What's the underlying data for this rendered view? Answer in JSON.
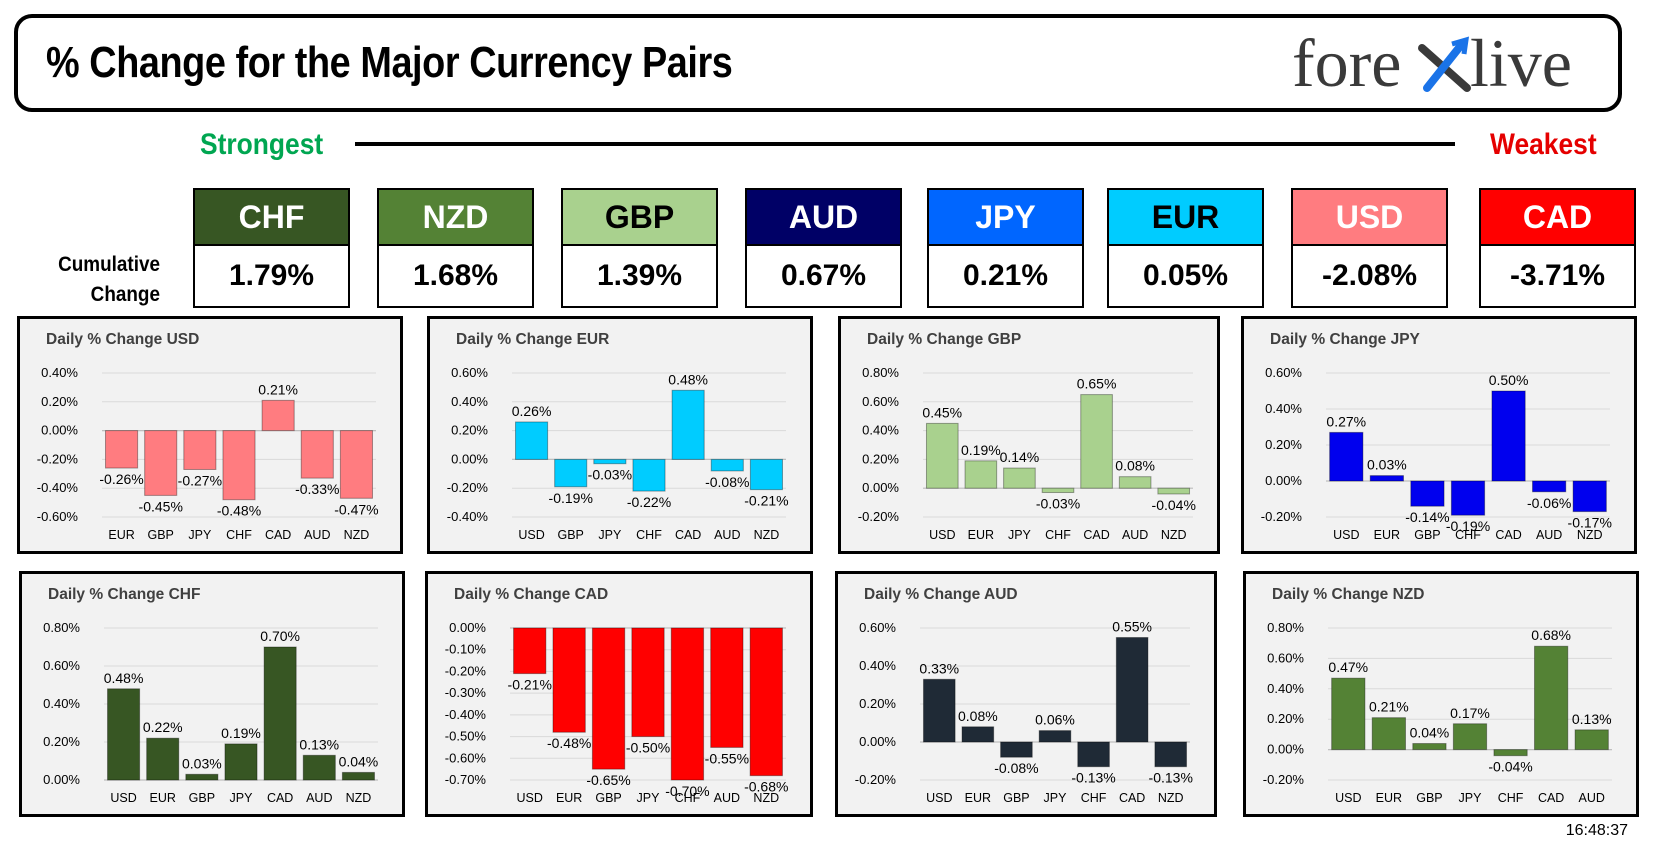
{
  "header": {
    "title": "% Change for the Major Currency Pairs",
    "logo_text": "forexlive"
  },
  "scale": {
    "strongest": "Strongest",
    "weakest": "Weakest"
  },
  "cumulative": {
    "label_line1": "Cumulative",
    "label_line2": "Change",
    "currencies": [
      {
        "code": "CHF",
        "value": "1.79%",
        "bg": "#375623",
        "fg": "#ffffff"
      },
      {
        "code": "NZD",
        "value": "1.68%",
        "bg": "#548235",
        "fg": "#ffffff"
      },
      {
        "code": "GBP",
        "value": "1.39%",
        "bg": "#a9d18e",
        "fg": "#000000"
      },
      {
        "code": "AUD",
        "value": "0.67%",
        "bg": "#000066",
        "fg": "#ffffff"
      },
      {
        "code": "JPY",
        "value": "0.21%",
        "bg": "#0066ff",
        "fg": "#ffffff"
      },
      {
        "code": "EUR",
        "value": "0.05%",
        "bg": "#00ccff",
        "fg": "#000000"
      },
      {
        "code": "USD",
        "value": "-2.08%",
        "bg": "#ff7c80",
        "fg": "#ffffff"
      },
      {
        "code": "CAD",
        "value": "-3.71%",
        "bg": "#ff0000",
        "fg": "#ffffff"
      }
    ]
  },
  "chart_data": [
    {
      "type": "bar",
      "title": "Daily % Change USD",
      "categories": [
        "EUR",
        "GBP",
        "JPY",
        "CHF",
        "CAD",
        "AUD",
        "NZD"
      ],
      "values": [
        -0.26,
        -0.45,
        -0.27,
        -0.48,
        0.21,
        -0.33,
        -0.47
      ],
      "ylim": [
        -0.6,
        0.4
      ],
      "ticks": [
        0.4,
        0.2,
        0,
        -0.2,
        -0.4,
        -0.6
      ],
      "decimals": 2,
      "color": "#ff7c80"
    },
    {
      "type": "bar",
      "title": "Daily % Change EUR",
      "categories": [
        "USD",
        "GBP",
        "JPY",
        "CHF",
        "CAD",
        "AUD",
        "NZD"
      ],
      "values": [
        0.26,
        -0.19,
        -0.03,
        -0.22,
        0.48,
        -0.08,
        -0.21
      ],
      "ylim": [
        -0.4,
        0.6
      ],
      "ticks": [
        0.6,
        0.4,
        0.2,
        0,
        -0.2,
        -0.4
      ],
      "decimals": 2,
      "color": "#00ccff"
    },
    {
      "type": "bar",
      "title": "Daily % Change GBP",
      "categories": [
        "USD",
        "EUR",
        "JPY",
        "CHF",
        "CAD",
        "AUD",
        "NZD"
      ],
      "values": [
        0.45,
        0.19,
        0.14,
        -0.03,
        0.65,
        0.08,
        -0.04
      ],
      "ylim": [
        -0.2,
        0.8
      ],
      "ticks": [
        0.8,
        0.6,
        0.4,
        0.2,
        0,
        -0.2
      ],
      "decimals": 2,
      "color": "#a9d18e"
    },
    {
      "type": "bar",
      "title": "Daily % Change JPY",
      "categories": [
        "USD",
        "EUR",
        "GBP",
        "CHF",
        "CAD",
        "AUD",
        "NZD"
      ],
      "values": [
        0.27,
        0.03,
        -0.14,
        -0.19,
        0.5,
        -0.06,
        -0.17
      ],
      "ylim": [
        -0.2,
        0.6
      ],
      "ticks": [
        0.6,
        0.4,
        0.2,
        0,
        -0.2
      ],
      "decimals": 2,
      "color": "#0000ee"
    },
    {
      "type": "bar",
      "title": "Daily % Change CHF",
      "categories": [
        "USD",
        "EUR",
        "GBP",
        "JPY",
        "CAD",
        "AUD",
        "NZD"
      ],
      "values": [
        0.48,
        0.22,
        0.03,
        0.19,
        0.7,
        0.13,
        0.04
      ],
      "ylim": [
        0,
        0.8
      ],
      "ticks": [
        0.8,
        0.6,
        0.4,
        0.2,
        0
      ],
      "decimals": 2,
      "color": "#375623"
    },
    {
      "type": "bar",
      "title": "Daily % Change CAD",
      "categories": [
        "USD",
        "EUR",
        "GBP",
        "JPY",
        "CHF",
        "AUD",
        "NZD"
      ],
      "values": [
        -0.21,
        -0.48,
        -0.65,
        -0.5,
        -0.7,
        -0.55,
        -0.68
      ],
      "ylim": [
        -0.7,
        0
      ],
      "ticks": [
        0,
        -0.1,
        -0.2,
        -0.3,
        -0.4,
        -0.5,
        -0.6,
        -0.7
      ],
      "decimals": 2,
      "color": "#ff0000"
    },
    {
      "type": "bar",
      "title": "Daily % Change AUD",
      "categories": [
        "USD",
        "EUR",
        "GBP",
        "JPY",
        "CHF",
        "CAD",
        "NZD"
      ],
      "values": [
        0.33,
        0.08,
        -0.08,
        0.06,
        -0.13,
        0.55,
        -0.13
      ],
      "ylim": [
        -0.2,
        0.6
      ],
      "ticks": [
        0.6,
        0.4,
        0.2,
        0,
        -0.2
      ],
      "decimals": 2,
      "color": "#1f2a36"
    },
    {
      "type": "bar",
      "title": "Daily % Change NZD",
      "categories": [
        "USD",
        "EUR",
        "GBP",
        "JPY",
        "CHF",
        "CAD",
        "AUD"
      ],
      "values": [
        0.47,
        0.21,
        0.04,
        0.17,
        -0.04,
        0.68,
        0.13
      ],
      "ylim": [
        -0.2,
        0.8
      ],
      "ticks": [
        0.8,
        0.6,
        0.4,
        0.2,
        0,
        -0.2
      ],
      "decimals": 2,
      "color": "#548235"
    }
  ],
  "timestamp": "16:48:37"
}
